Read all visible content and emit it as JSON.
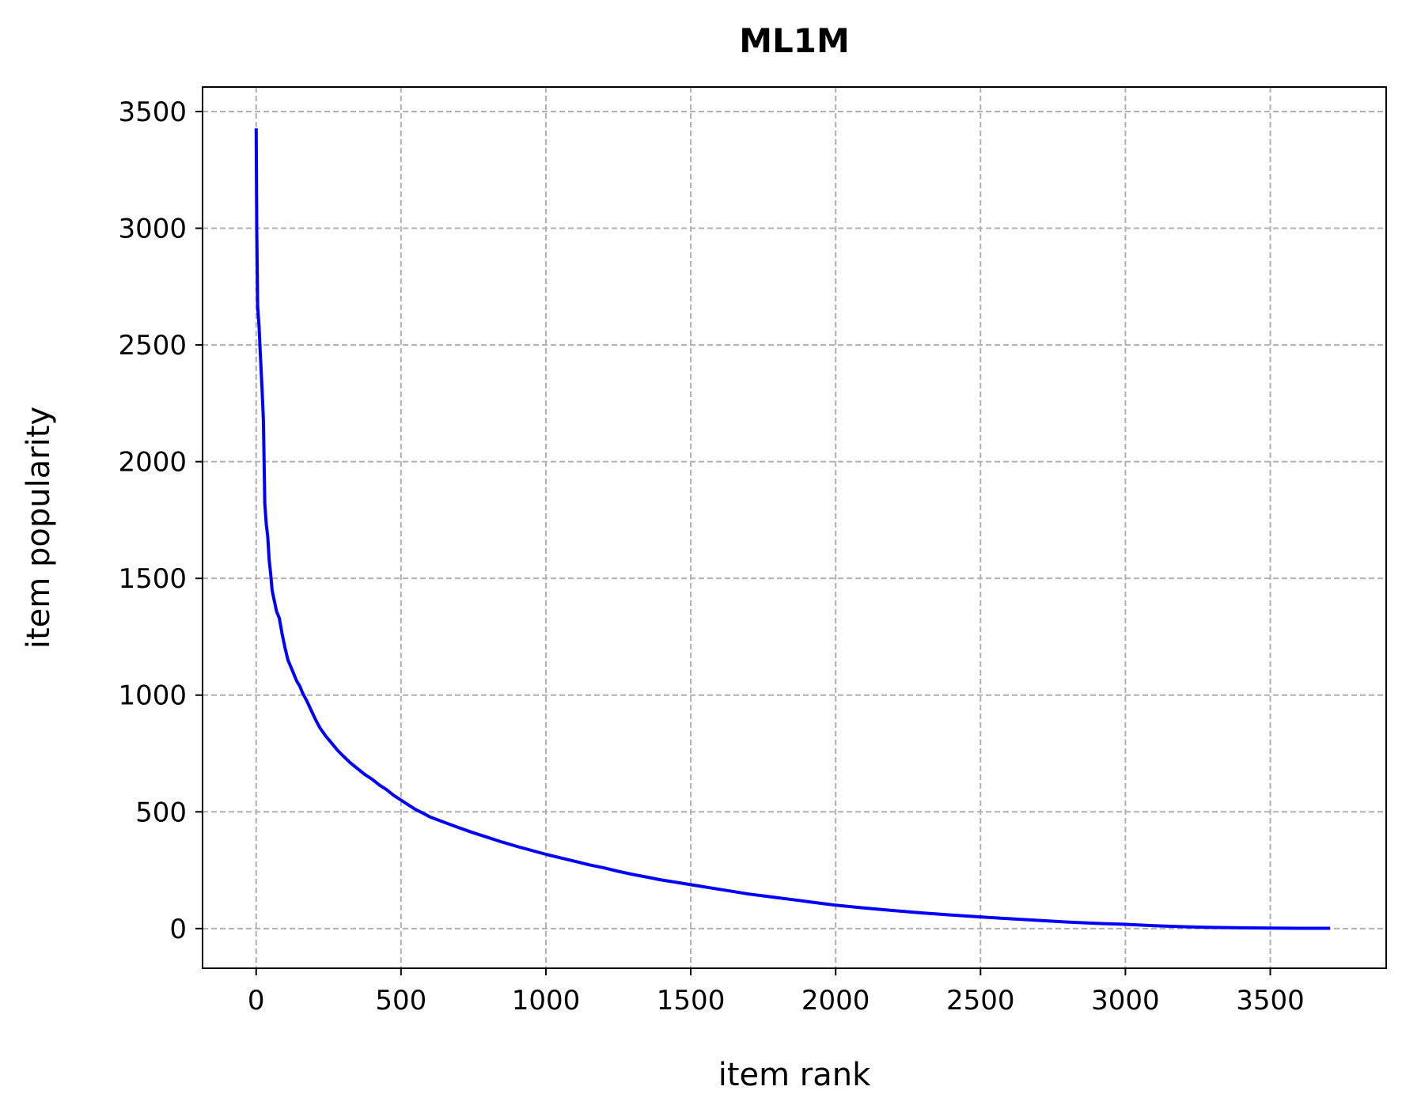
{
  "colors": {
    "line": "#0000ff",
    "grid": "#b0b0b0",
    "axes": "#000000",
    "background": "#ffffff"
  },
  "chart_data": {
    "type": "line",
    "title": "ML1M",
    "xlabel": "item rank",
    "ylabel": "item popularity",
    "xlim": [
      -185,
      3900
    ],
    "ylim": [
      -170,
      3605
    ],
    "x_ticks": [
      0,
      500,
      1000,
      1500,
      2000,
      2500,
      3000,
      3500
    ],
    "y_ticks": [
      0,
      500,
      1000,
      1500,
      2000,
      2500,
      3000,
      3500
    ],
    "x_tick_labels": [
      "0",
      "500",
      "1000",
      "1500",
      "2000",
      "2500",
      "3000",
      "3500"
    ],
    "y_tick_labels": [
      "0",
      "500",
      "1000",
      "1500",
      "2000",
      "2500",
      "3000",
      "3500"
    ],
    "grid": true,
    "series": [
      {
        "name": "ML1M",
        "x": [
          0,
          2,
          5,
          10,
          15,
          20,
          25,
          30,
          35,
          40,
          45,
          50,
          55,
          60,
          65,
          70,
          80,
          90,
          100,
          110,
          120,
          130,
          140,
          150,
          160,
          175,
          190,
          205,
          220,
          240,
          260,
          280,
          300,
          325,
          350,
          375,
          400,
          425,
          450,
          475,
          500,
          525,
          550,
          575,
          600,
          650,
          700,
          750,
          800,
          850,
          900,
          950,
          1000,
          1050,
          1100,
          1150,
          1200,
          1250,
          1300,
          1350,
          1400,
          1450,
          1500,
          1550,
          1600,
          1650,
          1700,
          1750,
          1800,
          1850,
          1900,
          1950,
          2000,
          2100,
          2200,
          2300,
          2400,
          2500,
          2600,
          2700,
          2800,
          2900,
          3000,
          3100,
          3200,
          3300,
          3400,
          3500,
          3600,
          3706
        ],
        "y": [
          3428,
          3000,
          2670,
          2580,
          2450,
          2320,
          2180,
          1820,
          1730,
          1680,
          1580,
          1520,
          1450,
          1420,
          1390,
          1360,
          1330,
          1260,
          1200,
          1150,
          1120,
          1090,
          1060,
          1040,
          1010,
          975,
          935,
          895,
          860,
          825,
          795,
          765,
          740,
          710,
          685,
          660,
          640,
          615,
          595,
          570,
          550,
          530,
          510,
          495,
          478,
          455,
          432,
          410,
          390,
          370,
          352,
          335,
          318,
          303,
          288,
          273,
          260,
          245,
          232,
          220,
          208,
          198,
          188,
          178,
          168,
          158,
          148,
          140,
          132,
          124,
          116,
          108,
          100,
          88,
          77,
          67,
          58,
          50,
          42,
          35,
          28,
          22,
          18,
          12,
          8,
          5,
          3,
          2,
          1,
          1
        ]
      }
    ]
  }
}
